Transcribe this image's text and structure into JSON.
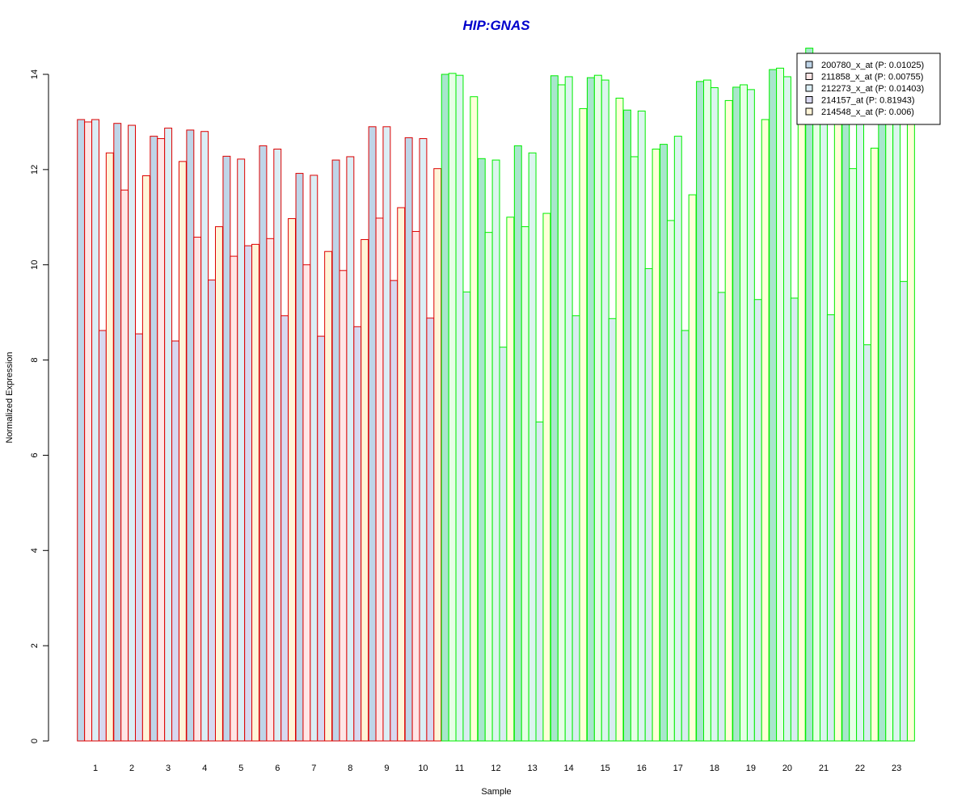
{
  "chart_data": {
    "type": "bar",
    "title": "HIP:GNAS",
    "xlabel": "Sample",
    "ylabel": "Normalized Expression",
    "ylim": [
      0,
      14
    ],
    "y_ticks": [
      "0",
      "2",
      "4",
      "6",
      "8",
      "10",
      "12",
      "14"
    ],
    "y_tick_values": [
      0,
      2,
      4,
      6,
      8,
      10,
      12,
      14
    ],
    "categories": [
      "1",
      "2",
      "3",
      "4",
      "5",
      "6",
      "7",
      "8",
      "9",
      "10",
      "11",
      "12",
      "13",
      "14",
      "15",
      "16",
      "17",
      "18",
      "19",
      "20",
      "21",
      "22",
      "23"
    ],
    "group_colors": {
      "group_1": {
        "samples": [
          "1",
          "2",
          "3",
          "4",
          "5",
          "6",
          "7",
          "8",
          "9",
          "10"
        ],
        "border": "#dd0000"
      },
      "group_2": {
        "samples": [
          "11",
          "12",
          "13",
          "14",
          "15",
          "16",
          "17",
          "18",
          "19",
          "20",
          "21",
          "22",
          "23"
        ],
        "border": "#00ee00"
      }
    },
    "grid": false,
    "legend_position": "top-right",
    "series": [
      {
        "name": "200780_x_at (P: 0.01025)",
        "fill": "#bfd5e8",
        "fill_group2": "#a8e6cc",
        "values": [
          13.05,
          12.97,
          12.7,
          12.83,
          12.28,
          12.5,
          11.92,
          12.2,
          12.9,
          12.67,
          14.0,
          12.23,
          12.5,
          13.97,
          13.93,
          13.25,
          12.53,
          13.85,
          13.73,
          14.1,
          14.55,
          13.5,
          13.4
        ]
      },
      {
        "name": "211858_x_at (P: 0.00755)",
        "fill": "#ffe6e6",
        "fill_group2": "#e6ffe6",
        "values": [
          13.0,
          11.57,
          12.65,
          10.58,
          10.18,
          10.55,
          10.0,
          9.88,
          10.98,
          10.7,
          14.02,
          10.68,
          10.8,
          13.78,
          13.98,
          12.27,
          10.93,
          13.88,
          13.78,
          14.13,
          13.1,
          12.02,
          13.0
        ]
      },
      {
        "name": "212273_x_at (P: 0.01403)",
        "fill": "#dbeef5",
        "fill_group2": "#dbf5ee",
        "values": [
          13.05,
          12.93,
          12.87,
          12.8,
          12.22,
          12.43,
          11.88,
          12.27,
          12.9,
          12.65,
          13.98,
          12.2,
          12.35,
          13.95,
          13.88,
          13.23,
          12.7,
          13.72,
          13.68,
          13.95,
          13.5,
          13.0,
          13.0
        ]
      },
      {
        "name": "214157_at (P: 0.81943)",
        "fill": "#d8d8f0",
        "fill_group2": "#d8ecf0",
        "values": [
          8.62,
          8.55,
          8.4,
          9.68,
          10.4,
          8.93,
          8.5,
          8.7,
          9.67,
          8.88,
          9.43,
          8.27,
          6.7,
          8.93,
          8.87,
          9.92,
          8.62,
          9.42,
          9.27,
          9.3,
          8.95,
          8.32,
          9.65
        ]
      },
      {
        "name": "214548_x_at (P: 0.006)",
        "fill": "#fff5d8",
        "fill_group2": "#ffffd8",
        "values": [
          12.35,
          11.87,
          12.17,
          10.8,
          10.43,
          10.97,
          10.28,
          10.53,
          11.2,
          12.02,
          13.53,
          11.0,
          11.08,
          13.28,
          13.5,
          12.43,
          11.47,
          13.45,
          13.05,
          13.3,
          13.1,
          12.45,
          13.2
        ]
      }
    ]
  }
}
